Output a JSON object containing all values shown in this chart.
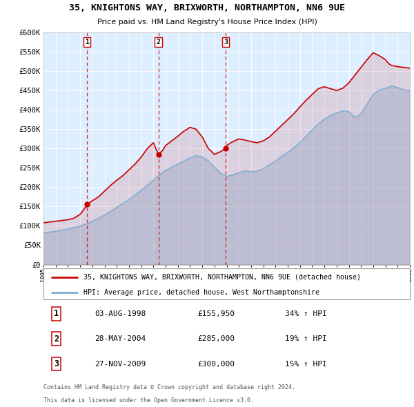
{
  "title": "35, KNIGHTONS WAY, BRIXWORTH, NORTHAMPTON, NN6 9UE",
  "subtitle": "Price paid vs. HM Land Registry's House Price Index (HPI)",
  "legend_line1": "35, KNIGHTONS WAY, BRIXWORTH, NORTHAMPTON, NN6 9UE (detached house)",
  "legend_line2": "HPI: Average price, detached house, West Northamptonshire",
  "footer1": "Contains HM Land Registry data © Crown copyright and database right 2024.",
  "footer2": "This data is licensed under the Open Government Licence v3.0.",
  "sale_color": "#cc0000",
  "hpi_color": "#7bafd4",
  "bg_color": "#ddeeff",
  "grid_color": "#ffffff",
  "sale_points": [
    {
      "year": 1998.58,
      "value": 155950,
      "label": "1"
    },
    {
      "year": 2004.41,
      "value": 285000,
      "label": "2"
    },
    {
      "year": 2009.91,
      "value": 300000,
      "label": "3"
    }
  ],
  "table_rows": [
    [
      "1",
      "03-AUG-1998",
      "£155,950",
      "34% ↑ HPI"
    ],
    [
      "2",
      "28-MAY-2004",
      "£285,000",
      "19% ↑ HPI"
    ],
    [
      "3",
      "27-NOV-2009",
      "£300,000",
      "15% ↑ HPI"
    ]
  ],
  "ylim": [
    0,
    600000
  ],
  "yticks": [
    0,
    50000,
    100000,
    150000,
    200000,
    250000,
    300000,
    350000,
    400000,
    450000,
    500000,
    550000,
    600000
  ],
  "xlim": [
    1995,
    2025
  ],
  "hpi_x": [
    1995,
    1995.5,
    1996,
    1996.5,
    1997,
    1997.5,
    1998,
    1998.5,
    1999,
    1999.5,
    2000,
    2000.5,
    2001,
    2001.5,
    2002,
    2002.5,
    2003,
    2003.5,
    2004,
    2004.5,
    2005,
    2005.5,
    2006,
    2006.5,
    2007,
    2007.5,
    2008,
    2008.5,
    2009,
    2009.5,
    2010,
    2010.5,
    2011,
    2011.5,
    2012,
    2012.5,
    2013,
    2013.5,
    2014,
    2014.5,
    2015,
    2015.5,
    2016,
    2016.5,
    2017,
    2017.5,
    2018,
    2018.5,
    2019,
    2019.5,
    2020,
    2020.5,
    2021,
    2021.5,
    2022,
    2022.5,
    2023,
    2023.5,
    2024,
    2024.5,
    2025
  ],
  "hpi_y": [
    82000,
    84000,
    86000,
    89000,
    92000,
    96000,
    100000,
    105000,
    112000,
    120000,
    128000,
    138000,
    148000,
    158000,
    168000,
    180000,
    192000,
    205000,
    218000,
    232000,
    244000,
    252000,
    260000,
    268000,
    276000,
    282000,
    278000,
    268000,
    252000,
    236000,
    228000,
    232000,
    238000,
    242000,
    240000,
    242000,
    248000,
    258000,
    268000,
    280000,
    290000,
    302000,
    316000,
    332000,
    348000,
    364000,
    376000,
    386000,
    392000,
    398000,
    396000,
    380000,
    390000,
    416000,
    440000,
    452000,
    456000,
    462000,
    458000,
    452000,
    450000
  ],
  "sale_x": [
    1995,
    1995.5,
    1996,
    1996.5,
    1997,
    1997.5,
    1998,
    1998.25,
    1998.58,
    1999,
    1999.5,
    2000,
    2000.5,
    2001,
    2001.5,
    2002,
    2002.5,
    2003,
    2003.5,
    2004,
    2004.41,
    2004.75,
    2005,
    2005.5,
    2006,
    2006.5,
    2007,
    2007.5,
    2008,
    2008.5,
    2009,
    2009.5,
    2009.91,
    2010,
    2010.5,
    2011,
    2011.5,
    2012,
    2012.5,
    2013,
    2013.5,
    2014,
    2014.5,
    2015,
    2015.5,
    2016,
    2016.5,
    2017,
    2017.5,
    2018,
    2018.5,
    2019,
    2019.5,
    2020,
    2020.5,
    2021,
    2021.5,
    2022,
    2022.5,
    2023,
    2023.25,
    2023.5,
    2024,
    2024.5,
    2025
  ],
  "sale_y": [
    108000,
    110000,
    112000,
    114000,
    116000,
    120000,
    130000,
    140000,
    155950,
    165000,
    175000,
    190000,
    205000,
    218000,
    230000,
    245000,
    260000,
    278000,
    300000,
    315000,
    285000,
    295000,
    308000,
    320000,
    332000,
    345000,
    355000,
    350000,
    330000,
    300000,
    285000,
    292000,
    300000,
    308000,
    318000,
    325000,
    322000,
    318000,
    315000,
    320000,
    330000,
    345000,
    360000,
    375000,
    390000,
    408000,
    425000,
    440000,
    455000,
    460000,
    455000,
    450000,
    456000,
    470000,
    490000,
    510000,
    530000,
    548000,
    540000,
    530000,
    520000,
    515000,
    512000,
    510000,
    508000
  ]
}
